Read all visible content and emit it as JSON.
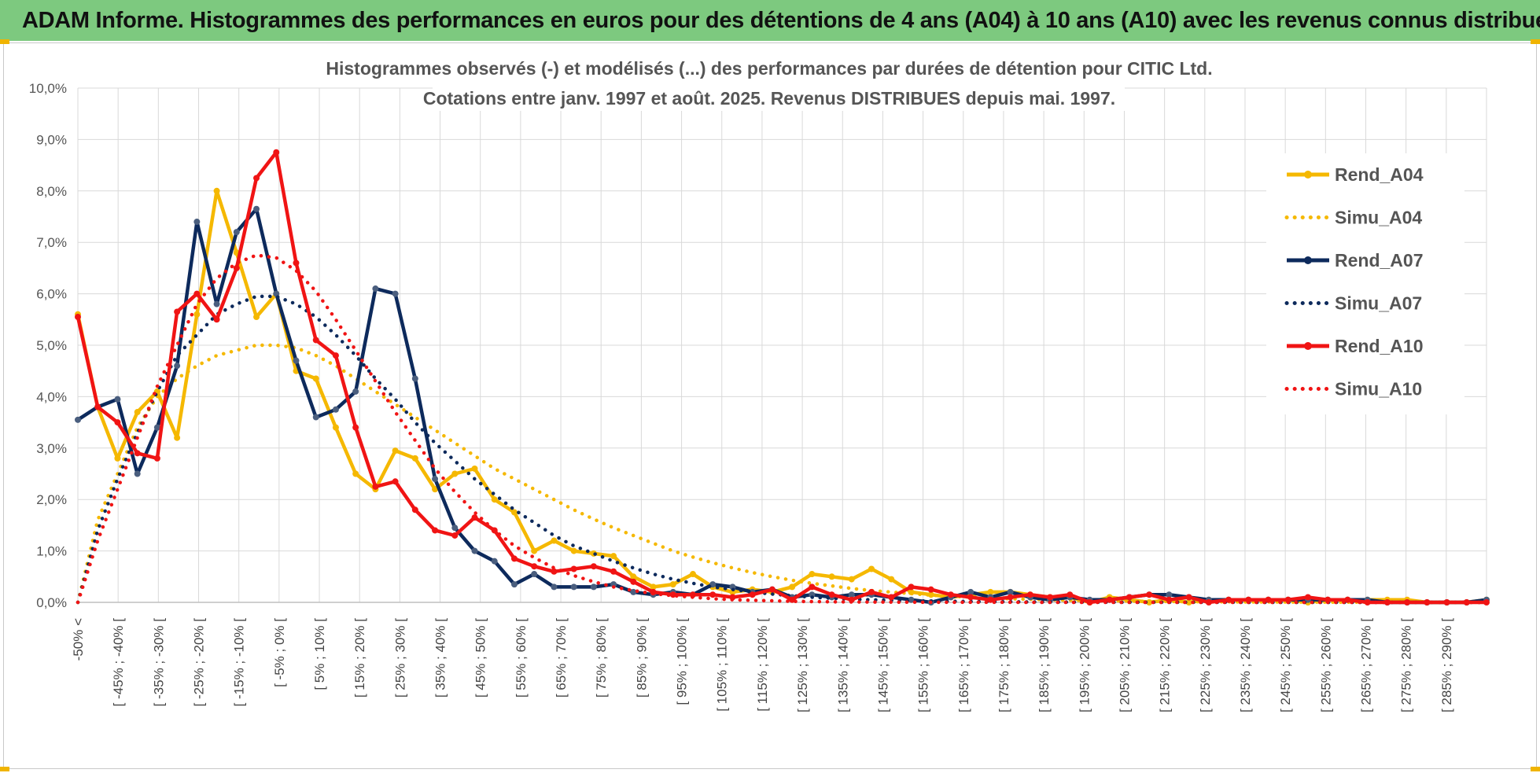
{
  "header": {
    "banner_title": "ADAM Informe. Histogrammes des performances en euros pour des détentions de 4 ans (A04) à 10 ans (A10) avec les revenus connus distribués"
  },
  "colors": {
    "banner_bg": "#7dc97f",
    "rend_a04": "#f5b800",
    "rend_a07": "#0d2a5c",
    "rend_a10": "#f01414",
    "grid": "#d9d9d9"
  },
  "chart_data": {
    "type": "line",
    "title": [
      "Histogrammes observés (-) et modélisés (...) des performances par durées de détention pour CITIC Ltd.",
      "Cotations entre janv. 1997 et août. 2025. Revenus DISTRIBUES depuis mai. 1997."
    ],
    "xlabel": "",
    "ylabel": "",
    "ylim": [
      0,
      10
    ],
    "y_ticks": [
      "0,0%",
      "1,0%",
      "2,0%",
      "3,0%",
      "4,0%",
      "5,0%",
      "6,0%",
      "7,0%",
      "8,0%",
      "9,0%",
      "10,0%"
    ],
    "grid": true,
    "legend_position": "right",
    "x_tick_labels": [
      "-50% <",
      "[ -45% ; -40% [",
      "[ -35% ; -30% [",
      "[ -25% ; -20% [",
      "[ -15% ; -10% [",
      "[ -5% ; 0% [",
      "[ 5% ; 10% [",
      "[ 15% ; 20% [",
      "[ 25% ; 30% [",
      "[ 35% ; 40% [",
      "[ 45% ; 50% [",
      "[ 55% ; 60% [",
      "[ 65% ; 70% [",
      "[ 75% ; 80% [",
      "[ 85% ; 90% [",
      "[ 95% ; 100% [",
      "[ 105% ; 110% [",
      "[ 115% ; 120% [",
      "[ 125% ; 130% [",
      "[ 135% ; 140% [",
      "[ 145% ; 150% [",
      "[ 155% ; 160% [",
      "[ 165% ; 170% [",
      "[ 175% ; 180% [",
      "[ 185% ; 190% [",
      "[ 195% ; 200% [",
      "[ 205% ; 210% [",
      "[ 215% ; 220% [",
      "[ 225% ; 230% [",
      "[ 235% ; 240% [",
      "[ 245% ; 250% [",
      "[ 255% ; 260% [",
      "[ 265% ; 270% [",
      "[ 275% ; 280% [",
      "[ 285% ; 290% ["
    ],
    "series": [
      {
        "name": "Rend_A04",
        "style": "solid",
        "color": "#f5b800",
        "values": [
          5.6,
          3.8,
          2.8,
          3.7,
          4.1,
          3.2,
          5.6,
          8.0,
          6.8,
          5.55,
          6.0,
          4.5,
          4.35,
          3.4,
          2.5,
          2.2,
          2.95,
          2.8,
          2.2,
          2.5,
          2.6,
          2.0,
          1.75,
          1.0,
          1.2,
          1.0,
          0.95,
          0.9,
          0.5,
          0.3,
          0.35,
          0.55,
          0.3,
          0.2,
          0.25,
          0.2,
          0.3,
          0.55,
          0.5,
          0.45,
          0.65,
          0.45,
          0.2,
          0.15,
          0.1,
          0.15,
          0.2,
          0.2,
          0.15,
          0.1,
          0.1,
          0.0,
          0.1,
          0.05,
          0.0,
          0.05,
          0.0,
          0.05,
          0.05,
          0.05,
          0.05,
          0.05,
          0.0,
          0.05,
          0.05,
          0.05,
          0.05,
          0.05,
          0.0,
          0.0,
          0.0,
          0.05
        ]
      },
      {
        "name": "Simu_A04",
        "style": "dotted",
        "color": "#f5b800",
        "values": [
          0.0,
          1.6,
          2.5,
          3.4,
          4.0,
          4.35,
          4.6,
          4.8,
          4.9,
          5.0,
          5.0,
          4.95,
          4.8,
          4.6,
          4.35,
          4.1,
          3.85,
          3.6,
          3.35,
          3.1,
          2.85,
          2.6,
          2.4,
          2.2,
          2.0,
          1.8,
          1.62,
          1.45,
          1.3,
          1.15,
          1.0,
          0.88,
          0.77,
          0.67,
          0.58,
          0.5,
          0.43,
          0.37,
          0.32,
          0.27,
          0.23,
          0.2,
          0.17,
          0.14,
          0.12,
          0.1,
          0.085,
          0.07,
          0.06,
          0.05,
          0.04,
          0.035,
          0.03,
          0.025,
          0.02,
          0.017,
          0.014,
          0.012,
          0.01,
          0.008,
          0.007,
          0.006,
          0.005,
          0.004,
          0.003,
          0.003,
          0.002,
          0.002,
          0.001,
          0.001,
          0.001,
          0.001
        ]
      },
      {
        "name": "Rend_A07",
        "style": "solid",
        "color": "#0d2a5c",
        "values": [
          3.55,
          3.8,
          3.95,
          2.5,
          3.4,
          4.6,
          7.4,
          5.8,
          7.2,
          7.65,
          6.0,
          4.7,
          3.6,
          3.75,
          4.1,
          6.1,
          6.0,
          4.35,
          2.4,
          1.45,
          1.0,
          0.8,
          0.35,
          0.55,
          0.3,
          0.3,
          0.3,
          0.35,
          0.2,
          0.15,
          0.2,
          0.15,
          0.35,
          0.3,
          0.2,
          0.25,
          0.1,
          0.15,
          0.1,
          0.15,
          0.15,
          0.1,
          0.05,
          0.0,
          0.1,
          0.2,
          0.1,
          0.2,
          0.1,
          0.05,
          0.1,
          0.05,
          0.05,
          0.1,
          0.15,
          0.15,
          0.1,
          0.05,
          0.05,
          0.05,
          0.05,
          0.05,
          0.05,
          0.05,
          0.05,
          0.05,
          0.0,
          0.0,
          0.0,
          0.0,
          0.0,
          0.05
        ]
      },
      {
        "name": "Simu_A07",
        "style": "dotted",
        "color": "#0d2a5c",
        "values": [
          0.0,
          1.4,
          2.4,
          3.3,
          4.1,
          4.8,
          5.2,
          5.6,
          5.8,
          5.95,
          5.95,
          5.8,
          5.55,
          5.2,
          4.8,
          4.35,
          3.95,
          3.5,
          3.1,
          2.75,
          2.4,
          2.1,
          1.8,
          1.55,
          1.3,
          1.1,
          0.95,
          0.8,
          0.67,
          0.55,
          0.45,
          0.37,
          0.3,
          0.25,
          0.2,
          0.16,
          0.13,
          0.1,
          0.08,
          0.06,
          0.05,
          0.04,
          0.03,
          0.025,
          0.02,
          0.015,
          0.012,
          0.01,
          0.008,
          0.006,
          0.005,
          0.004,
          0.003,
          0.002,
          0.002,
          0.001,
          0.001,
          0.001,
          0.001,
          0.0,
          0.0,
          0.0,
          0.0,
          0.0,
          0.0,
          0.0,
          0.0,
          0.0,
          0.0,
          0.0,
          0.0,
          0.0
        ]
      },
      {
        "name": "Rend_A10",
        "style": "solid",
        "color": "#f01414",
        "values": [
          5.55,
          3.8,
          3.5,
          2.9,
          2.8,
          5.65,
          6.0,
          5.5,
          6.5,
          8.25,
          8.75,
          6.6,
          5.1,
          4.8,
          3.4,
          2.25,
          2.35,
          1.8,
          1.4,
          1.3,
          1.65,
          1.4,
          0.85,
          0.7,
          0.6,
          0.65,
          0.7,
          0.6,
          0.4,
          0.2,
          0.15,
          0.15,
          0.15,
          0.1,
          0.15,
          0.25,
          0.05,
          0.3,
          0.15,
          0.05,
          0.2,
          0.1,
          0.3,
          0.25,
          0.15,
          0.1,
          0.05,
          0.1,
          0.15,
          0.1,
          0.15,
          0.0,
          0.05,
          0.1,
          0.15,
          0.05,
          0.1,
          0.0,
          0.05,
          0.05,
          0.05,
          0.05,
          0.1,
          0.05,
          0.05,
          0.0,
          0.0,
          0.0,
          0.0,
          0.0,
          0.0,
          0.0
        ]
      },
      {
        "name": "Simu_A10",
        "style": "dotted",
        "color": "#f01414",
        "values": [
          0.0,
          1.2,
          2.2,
          3.2,
          4.2,
          5.0,
          5.8,
          6.3,
          6.6,
          6.75,
          6.7,
          6.45,
          6.05,
          5.5,
          4.9,
          4.3,
          3.7,
          3.15,
          2.6,
          2.15,
          1.75,
          1.4,
          1.1,
          0.87,
          0.67,
          0.52,
          0.4,
          0.3,
          0.23,
          0.17,
          0.13,
          0.1,
          0.07,
          0.05,
          0.04,
          0.03,
          0.02,
          0.015,
          0.01,
          0.008,
          0.006,
          0.004,
          0.003,
          0.002,
          0.002,
          0.001,
          0.001,
          0.001,
          0.0,
          0.0,
          0.0,
          0.0,
          0.0,
          0.0,
          0.0,
          0.0,
          0.0,
          0.0,
          0.0,
          0.0,
          0.0,
          0.0,
          0.0,
          0.0,
          0.0,
          0.0,
          0.0,
          0.0,
          0.0,
          0.0,
          0.0,
          0.0
        ]
      }
    ]
  }
}
